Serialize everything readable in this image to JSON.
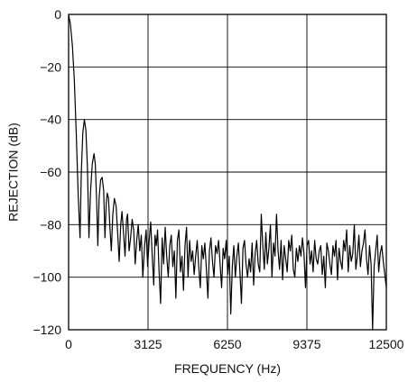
{
  "chart_data": {
    "type": "line",
    "title": "",
    "xlabel": "FREQUENCY (Hz)",
    "ylabel": "REJECTION (dB)",
    "xlim": [
      0,
      12500
    ],
    "ylim": [
      -120,
      0
    ],
    "x_ticks": [
      0,
      3125,
      6250,
      9375,
      12500
    ],
    "y_ticks": [
      0,
      -20,
      -40,
      -60,
      -80,
      -100,
      -120
    ],
    "x_tick_labels": [
      "0",
      "3125",
      "6250",
      "9375",
      "12500"
    ],
    "y_tick_labels": [
      "0",
      "−20",
      "−40",
      "−60",
      "−80",
      "−100",
      "−120"
    ],
    "grid": true,
    "legend": "none",
    "line_color": "#000000",
    "series": [
      {
        "x": [
          0,
          75,
          150,
          225,
          300,
          375,
          450,
          500,
          560,
          620,
          680,
          740,
          800,
          860,
          930,
          1000,
          1050,
          1100,
          1150,
          1200,
          1260,
          1320,
          1380,
          1430,
          1480,
          1520,
          1570,
          1620,
          1680,
          1740,
          1800,
          1870,
          1940,
          1990,
          2050,
          2100,
          2160,
          2220,
          2280,
          2320,
          2380,
          2440,
          2500,
          2560,
          2620,
          2680,
          2740,
          2800,
          2860,
          2920,
          2990,
          3050,
          3110,
          3170,
          3230,
          3290,
          3350,
          3400,
          3450,
          3500,
          3560,
          3620,
          3680,
          3740,
          3800,
          3860,
          3920,
          3980,
          4040,
          4100,
          4160,
          4220,
          4280,
          4340,
          4400,
          4460,
          4520,
          4580,
          4640,
          4700,
          4760,
          4820,
          4880,
          4940,
          5000,
          5060,
          5120,
          5180,
          5240,
          5300,
          5360,
          5420,
          5480,
          5540,
          5600,
          5660,
          5720,
          5780,
          5840,
          5900,
          5960,
          6020,
          6080,
          6140,
          6200,
          6260,
          6320,
          6380,
          6440,
          6500,
          6560,
          6620,
          6680,
          6740,
          6800,
          6860,
          6920,
          6980,
          7040,
          7100,
          7160,
          7220,
          7280,
          7340,
          7400,
          7460,
          7520,
          7580,
          7640,
          7700,
          7760,
          7820,
          7880,
          7940,
          8000,
          8060,
          8120,
          8180,
          8240,
          8300,
          8360,
          8420,
          8480,
          8540,
          8600,
          8660,
          8720,
          8780,
          8840,
          8900,
          8960,
          9020,
          9080,
          9140,
          9200,
          9260,
          9320,
          9380,
          9440,
          9500,
          9560,
          9620,
          9680,
          9740,
          9800,
          9860,
          9920,
          9980,
          10040,
          10100,
          10160,
          10220,
          10280,
          10340,
          10400,
          10460,
          10520,
          10580,
          10640,
          10700,
          10760,
          10820,
          10880,
          10940,
          11000,
          11060,
          11120,
          11180,
          11240,
          11300,
          11360,
          11420,
          11480,
          11540,
          11600,
          11660,
          11720,
          11780,
          11840,
          11900,
          11960,
          12020,
          12080,
          12140,
          12200,
          12260,
          12320,
          12380,
          12440,
          12500
        ],
        "y": [
          0,
          -4,
          -12,
          -25,
          -45,
          -68,
          -85,
          -60,
          -45,
          -40,
          -44,
          -58,
          -85,
          -68,
          -57,
          -53,
          -57,
          -70,
          -88,
          -70,
          -63,
          -62,
          -67,
          -85,
          -72,
          -68,
          -70,
          -80,
          -90,
          -76,
          -70,
          -73,
          -85,
          -94,
          -80,
          -75,
          -83,
          -92,
          -78,
          -76,
          -90,
          -85,
          -78,
          -82,
          -95,
          -86,
          -80,
          -90,
          -84,
          -100,
          -88,
          -82,
          -96,
          -86,
          -79,
          -92,
          -103,
          -84,
          -88,
          -82,
          -98,
          -110,
          -85,
          -95,
          -81,
          -92,
          -100,
          -88,
          -84,
          -96,
          -90,
          -108,
          -86,
          -82,
          -98,
          -92,
          -105,
          -88,
          -81,
          -100,
          -86,
          -94,
          -90,
          -99,
          -92,
          -86,
          -96,
          -104,
          -88,
          -93,
          -87,
          -97,
          -108,
          -90,
          -85,
          -94,
          -100,
          -88,
          -91,
          -86,
          -95,
          -104,
          -89,
          -93,
          -86,
          -99,
          -92,
          -114,
          -96,
          -88,
          -100,
          -92,
          -87,
          -98,
          -110,
          -89,
          -86,
          -95,
          -100,
          -93,
          -98,
          -87,
          -103,
          -91,
          -86,
          -95,
          -98,
          -76,
          -88,
          -97,
          -83,
          -95,
          -89,
          -80,
          -100,
          -87,
          -92,
          -76,
          -90,
          -97,
          -86,
          -101,
          -88,
          -93,
          -98,
          -86,
          -90,
          -84,
          -97,
          -100,
          -89,
          -94,
          -88,
          -92,
          -85,
          -91,
          -104,
          -88,
          -86,
          -95,
          -90,
          -98,
          -86,
          -93,
          -95,
          -90,
          -88,
          -99,
          -92,
          -104,
          -87,
          -90,
          -95,
          -99,
          -88,
          -92,
          -86,
          -101,
          -89,
          -94,
          -97,
          -86,
          -90,
          -82,
          -98,
          -88,
          -94,
          -91,
          -80,
          -97,
          -92,
          -84,
          -96,
          -90,
          -87,
          -82,
          -93,
          -99,
          -88,
          -95,
          -120,
          -96,
          -90,
          -84,
          -98,
          -91,
          -88,
          -94,
          -99,
          -104
        ]
      }
    ]
  }
}
